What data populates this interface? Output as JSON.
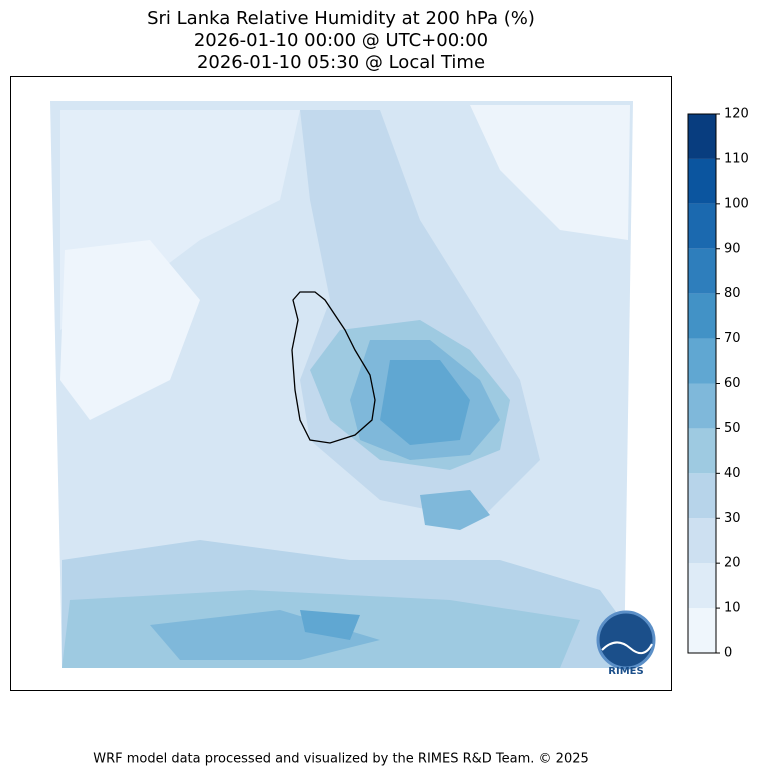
{
  "title": [
    "Sri Lanka Relative Humidity at 200 hPa (%)",
    "2026-01-10 00:00 @ UTC+00:00",
    "2026-01-10 05:30 @ Local Time"
  ],
  "colorbar": {
    "ticks": [
      0,
      10,
      20,
      30,
      40,
      50,
      60,
      70,
      80,
      90,
      100,
      110,
      120
    ],
    "colors": [
      "#eff6fc",
      "#deebf7",
      "#cde0f1",
      "#b7d4ea",
      "#9ecae1",
      "#7fb8da",
      "#60a7d2",
      "#4292c6",
      "#2e7ebc",
      "#1b69af",
      "#0b559f",
      "#083d7f"
    ]
  },
  "logo": "RIMES",
  "footer": "WRF model data processed and visualized by the RIMES R&D Team. © 2025"
}
